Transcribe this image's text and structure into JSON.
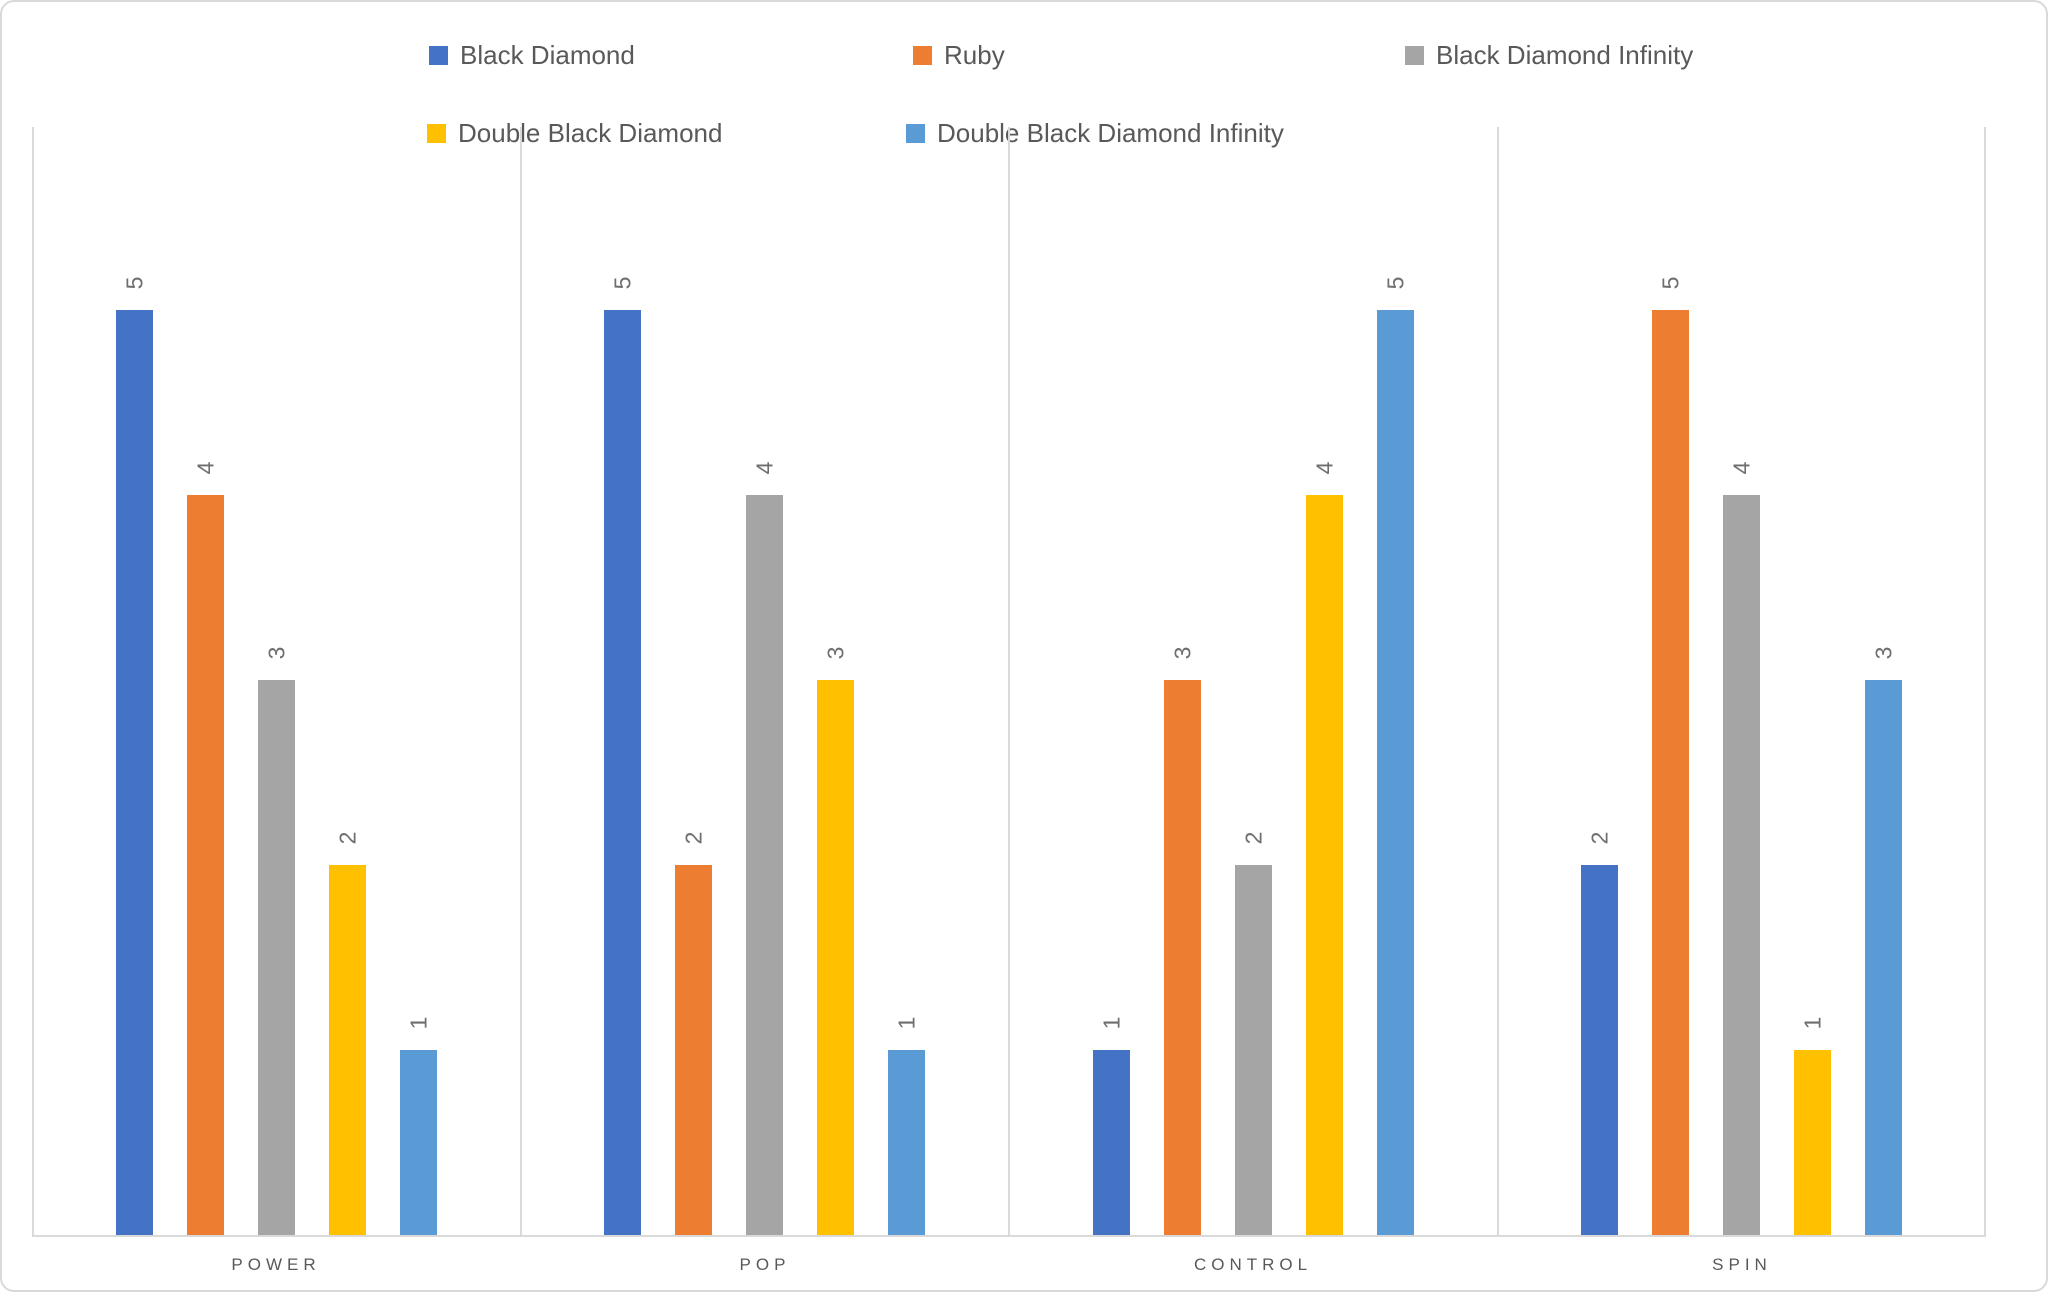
{
  "chart_data": {
    "type": "bar",
    "title": "",
    "categories": [
      "POWER",
      "POP",
      "CONTROL",
      "SPIN"
    ],
    "series": [
      {
        "name": "Black Diamond",
        "color": "#4472C4",
        "values": [
          5,
          5,
          1,
          2
        ]
      },
      {
        "name": "Ruby",
        "color": "#ED7D31",
        "values": [
          4,
          2,
          3,
          5
        ]
      },
      {
        "name": "Black Diamond Infinity",
        "color": "#A5A5A5",
        "values": [
          3,
          4,
          2,
          4
        ]
      },
      {
        "name": "Double Black Diamond",
        "color": "#FFC000",
        "values": [
          2,
          3,
          4,
          1
        ]
      },
      {
        "name": "Double Black Diamond Infinity",
        "color": "#5B9BD5",
        "values": [
          1,
          1,
          5,
          3
        ]
      }
    ],
    "ylim": [
      0,
      6
    ],
    "xlabel": "",
    "ylabel": "",
    "value_axis_visible": false,
    "data_labels": "value above bar, rotated 270",
    "legend_position": "top",
    "gridlines": "vertical category separators only",
    "colors": {
      "axis_line": "#D9D9D9",
      "legend_text": "#595959",
      "category_text": "#595959",
      "data_label_text": "#6E6E6E",
      "background": "#FFFFFF"
    }
  }
}
